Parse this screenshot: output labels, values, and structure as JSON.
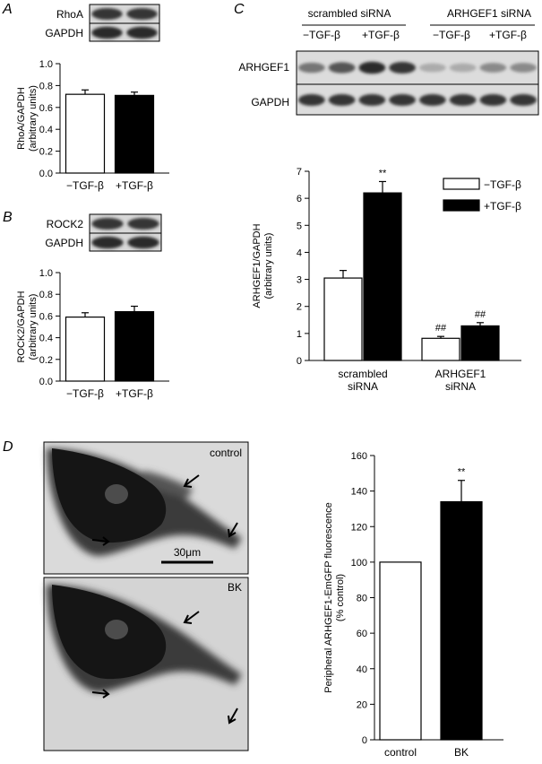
{
  "panels": {
    "A": {
      "letter": "A"
    },
    "B": {
      "letter": "B"
    },
    "C": {
      "letter": "C"
    },
    "D": {
      "letter": "D"
    }
  },
  "blots": {
    "A": {
      "bands": [
        "RhoA",
        "GAPDH"
      ],
      "intensity": [
        [
          0.85,
          0.85
        ],
        [
          0.9,
          0.9
        ]
      ]
    },
    "B": {
      "bands": [
        "ROCK2",
        "GAPDH"
      ],
      "intensity": [
        [
          0.85,
          0.85
        ],
        [
          0.9,
          0.9
        ]
      ]
    },
    "C": {
      "groups": [
        "scrambled siRNA",
        "ARHGEF1 siRNA"
      ],
      "conditions": [
        "−TGF-β",
        "+TGF-β",
        "−TGF-β",
        "+TGF-β"
      ],
      "bands": [
        "ARHGEF1",
        "GAPDH"
      ],
      "intensity": [
        [
          0.55,
          0.7,
          0.9,
          0.85,
          0.3,
          0.3,
          0.45,
          0.45
        ],
        [
          0.85,
          0.85,
          0.85,
          0.85,
          0.85,
          0.85,
          0.85,
          0.85
        ]
      ]
    }
  },
  "micrographs": {
    "top_label": "control",
    "bottom_label": "BK",
    "scale_bar_label": "30μm"
  },
  "chart_data": [
    {
      "id": "A",
      "type": "bar",
      "categories": [
        "−TGF-β",
        "+TGF-β"
      ],
      "values": [
        0.72,
        0.71
      ],
      "errors": [
        0.04,
        0.03
      ],
      "fill": [
        "#ffffff",
        "#000000"
      ],
      "ylabel": "RhoA/GAPDH\n(arbitrary units)",
      "ylim": [
        0,
        1.0
      ],
      "yticks": [
        "0.0",
        "0.2",
        "0.4",
        "0.6",
        "0.8",
        "1.0"
      ],
      "annotations": []
    },
    {
      "id": "B",
      "type": "bar",
      "categories": [
        "−TGF-β",
        "+TGF-β"
      ],
      "values": [
        0.59,
        0.64
      ],
      "errors": [
        0.04,
        0.05
      ],
      "fill": [
        "#ffffff",
        "#000000"
      ],
      "ylabel": "ROCK2/GAPDH\n(arbitrary units)",
      "ylim": [
        0,
        1.0
      ],
      "yticks": [
        "0.0",
        "0.2",
        "0.4",
        "0.6",
        "0.8",
        "1.0"
      ],
      "annotations": []
    },
    {
      "id": "C",
      "type": "bar",
      "categories": [
        "scrambled\nsiRNA",
        "ARHGEF1\nsiRNA"
      ],
      "series": [
        {
          "name": "−TGF-β",
          "values": [
            3.05,
            0.82
          ],
          "errors": [
            0.28,
            0.07
          ],
          "fill": "#ffffff",
          "annotations": [
            "",
            "##"
          ]
        },
        {
          "name": "+TGF-β",
          "values": [
            6.2,
            1.28
          ],
          "errors": [
            0.42,
            0.12
          ],
          "fill": "#000000",
          "annotations": [
            "**",
            "##"
          ]
        }
      ],
      "ylabel": "ARHGEF1/GAPDH\n(arbitrary units)",
      "ylim": [
        0,
        7
      ],
      "yticks": [
        "0",
        "1",
        "2",
        "3",
        "4",
        "5",
        "6",
        "7"
      ],
      "legend": "top-right"
    },
    {
      "id": "D",
      "type": "bar",
      "categories": [
        "control",
        "BK"
      ],
      "values": [
        100,
        134
      ],
      "errors": [
        0,
        12
      ],
      "fill": [
        "#ffffff",
        "#000000"
      ],
      "ylabel": "Peripheral ARHGEF1-EmGFP fluorescence\n(% control)",
      "ylim": [
        0,
        160
      ],
      "yticks": [
        "0",
        "20",
        "40",
        "60",
        "80",
        "100",
        "120",
        "140",
        "160"
      ],
      "annotations": [
        "",
        "**"
      ]
    }
  ]
}
